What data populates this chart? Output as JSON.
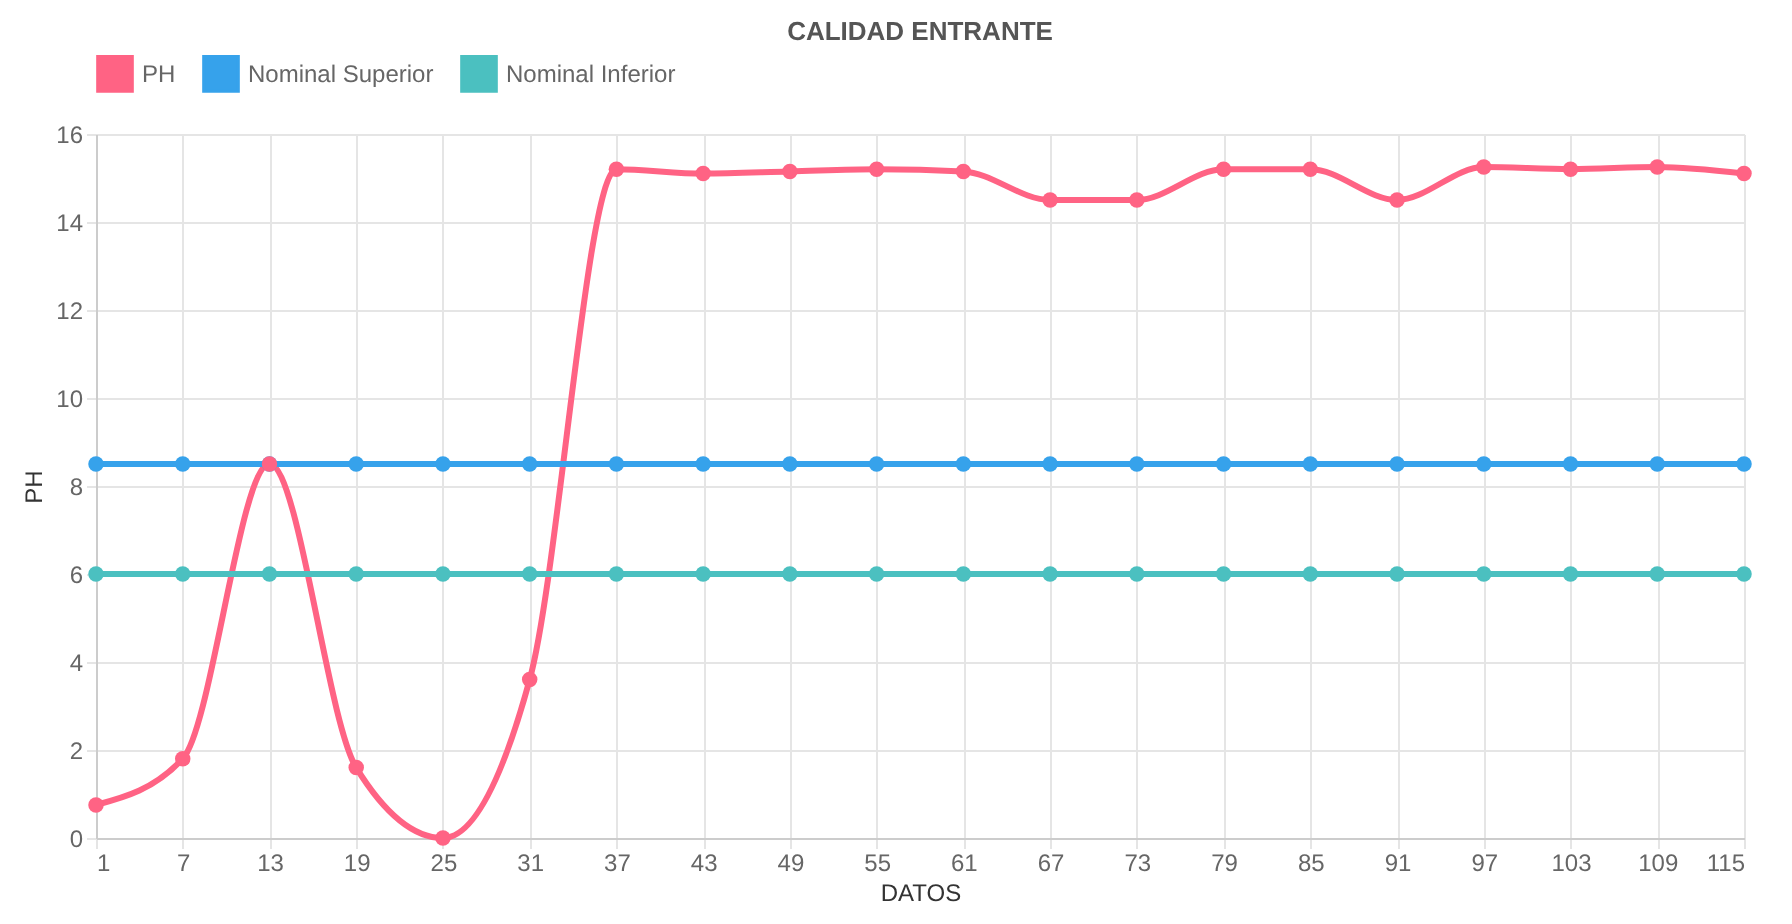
{
  "chart_data": {
    "type": "line",
    "title": "CALIDAD ENTRANTE",
    "xlabel": "DATOS",
    "ylabel": "PH",
    "categories": [
      "1",
      "7",
      "13",
      "19",
      "25",
      "31",
      "37",
      "43",
      "49",
      "55",
      "61",
      "67",
      "73",
      "79",
      "85",
      "91",
      "97",
      "103",
      "109",
      "115"
    ],
    "series": [
      {
        "name": "PH",
        "color": "#ff6384",
        "values": [
          0.75,
          1.8,
          8.5,
          1.6,
          0,
          3.6,
          15.2,
          15.1,
          15.15,
          15.2,
          15.15,
          14.5,
          14.5,
          15.2,
          15.2,
          14.5,
          15.25,
          15.2,
          15.25,
          15.1
        ]
      },
      {
        "name": "Nominal Superior",
        "color": "#36a2eb",
        "values": [
          8.5,
          8.5,
          8.5,
          8.5,
          8.5,
          8.5,
          8.5,
          8.5,
          8.5,
          8.5,
          8.5,
          8.5,
          8.5,
          8.5,
          8.5,
          8.5,
          8.5,
          8.5,
          8.5,
          8.5
        ]
      },
      {
        "name": "Nominal Inferior",
        "color": "#4bc0c0",
        "values": [
          6,
          6,
          6,
          6,
          6,
          6,
          6,
          6,
          6,
          6,
          6,
          6,
          6,
          6,
          6,
          6,
          6,
          6,
          6,
          6
        ]
      }
    ],
    "ylim": [
      0,
      16
    ],
    "yticks": [
      0,
      2,
      4,
      6,
      8,
      10,
      12,
      14,
      16
    ],
    "grid": true,
    "legend": "top",
    "marker": "circle",
    "line_style": "solid"
  }
}
